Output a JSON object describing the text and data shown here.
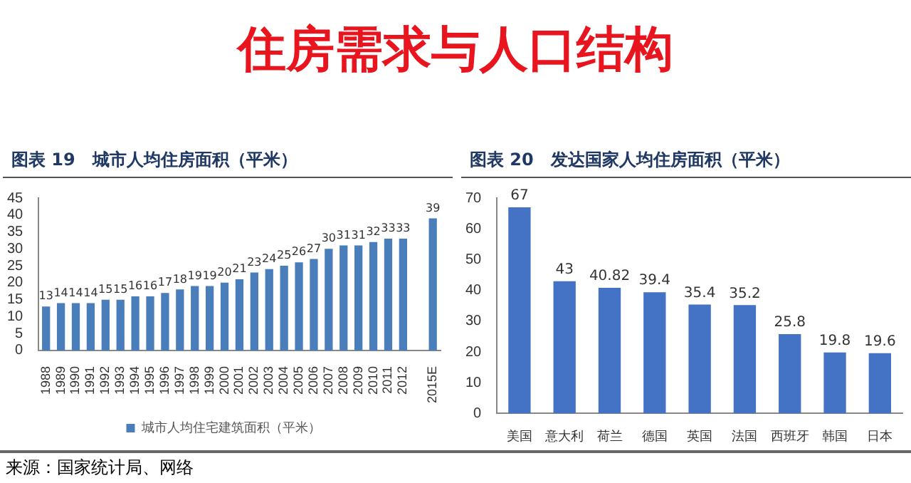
{
  "chart_data": [
    {
      "type": "bar",
      "title": "图表 19　城市人均住房面积（平米）",
      "annotations": [
        "住房需求与人口结构",
        "来源：国家统计局、网络"
      ],
      "categories": [
        "1988",
        "1989",
        "1990",
        "1991",
        "1992",
        "1993",
        "1994",
        "1995",
        "1996",
        "1997",
        "1998",
        "1999",
        "2000",
        "2001",
        "2002",
        "2003",
        "2004",
        "2005",
        "2006",
        "2007",
        "2008",
        "2009",
        "2010",
        "2011",
        "2012",
        null,
        "2015E"
      ],
      "series": [
        {
          "name": "城市人均住宅建筑面积（平米）",
          "color": "#4a7ebb",
          "values": [
            13,
            14,
            14,
            14,
            15,
            15,
            16,
            16,
            17,
            18,
            19,
            19,
            20,
            21,
            23,
            24,
            25,
            26,
            27,
            30,
            31,
            31,
            32,
            33,
            33,
            null,
            39
          ]
        }
      ],
      "ylim": [
        0,
        45
      ],
      "yticks": [
        0,
        5,
        10,
        15,
        20,
        25,
        30,
        35,
        40,
        45
      ],
      "grid": false,
      "legend": "bottom",
      "data_labels": true
    },
    {
      "type": "bar",
      "title": "图表 20　发达国家人均住房面积（平米）",
      "categories": [
        "美国",
        "意大利",
        "荷兰",
        "德国",
        "英国",
        "法国",
        "西班牙",
        "韩国",
        "日本"
      ],
      "series": [
        {
          "color": "#4472c4",
          "values": [
            67,
            43,
            40.82,
            39.4,
            35.4,
            35.2,
            25.8,
            19.8,
            19.6
          ]
        }
      ],
      "ylim": [
        0,
        70
      ],
      "yticks": [
        0,
        10,
        20,
        30,
        40,
        50,
        60,
        70
      ],
      "grid": false,
      "legend": false,
      "data_labels": true
    }
  ]
}
